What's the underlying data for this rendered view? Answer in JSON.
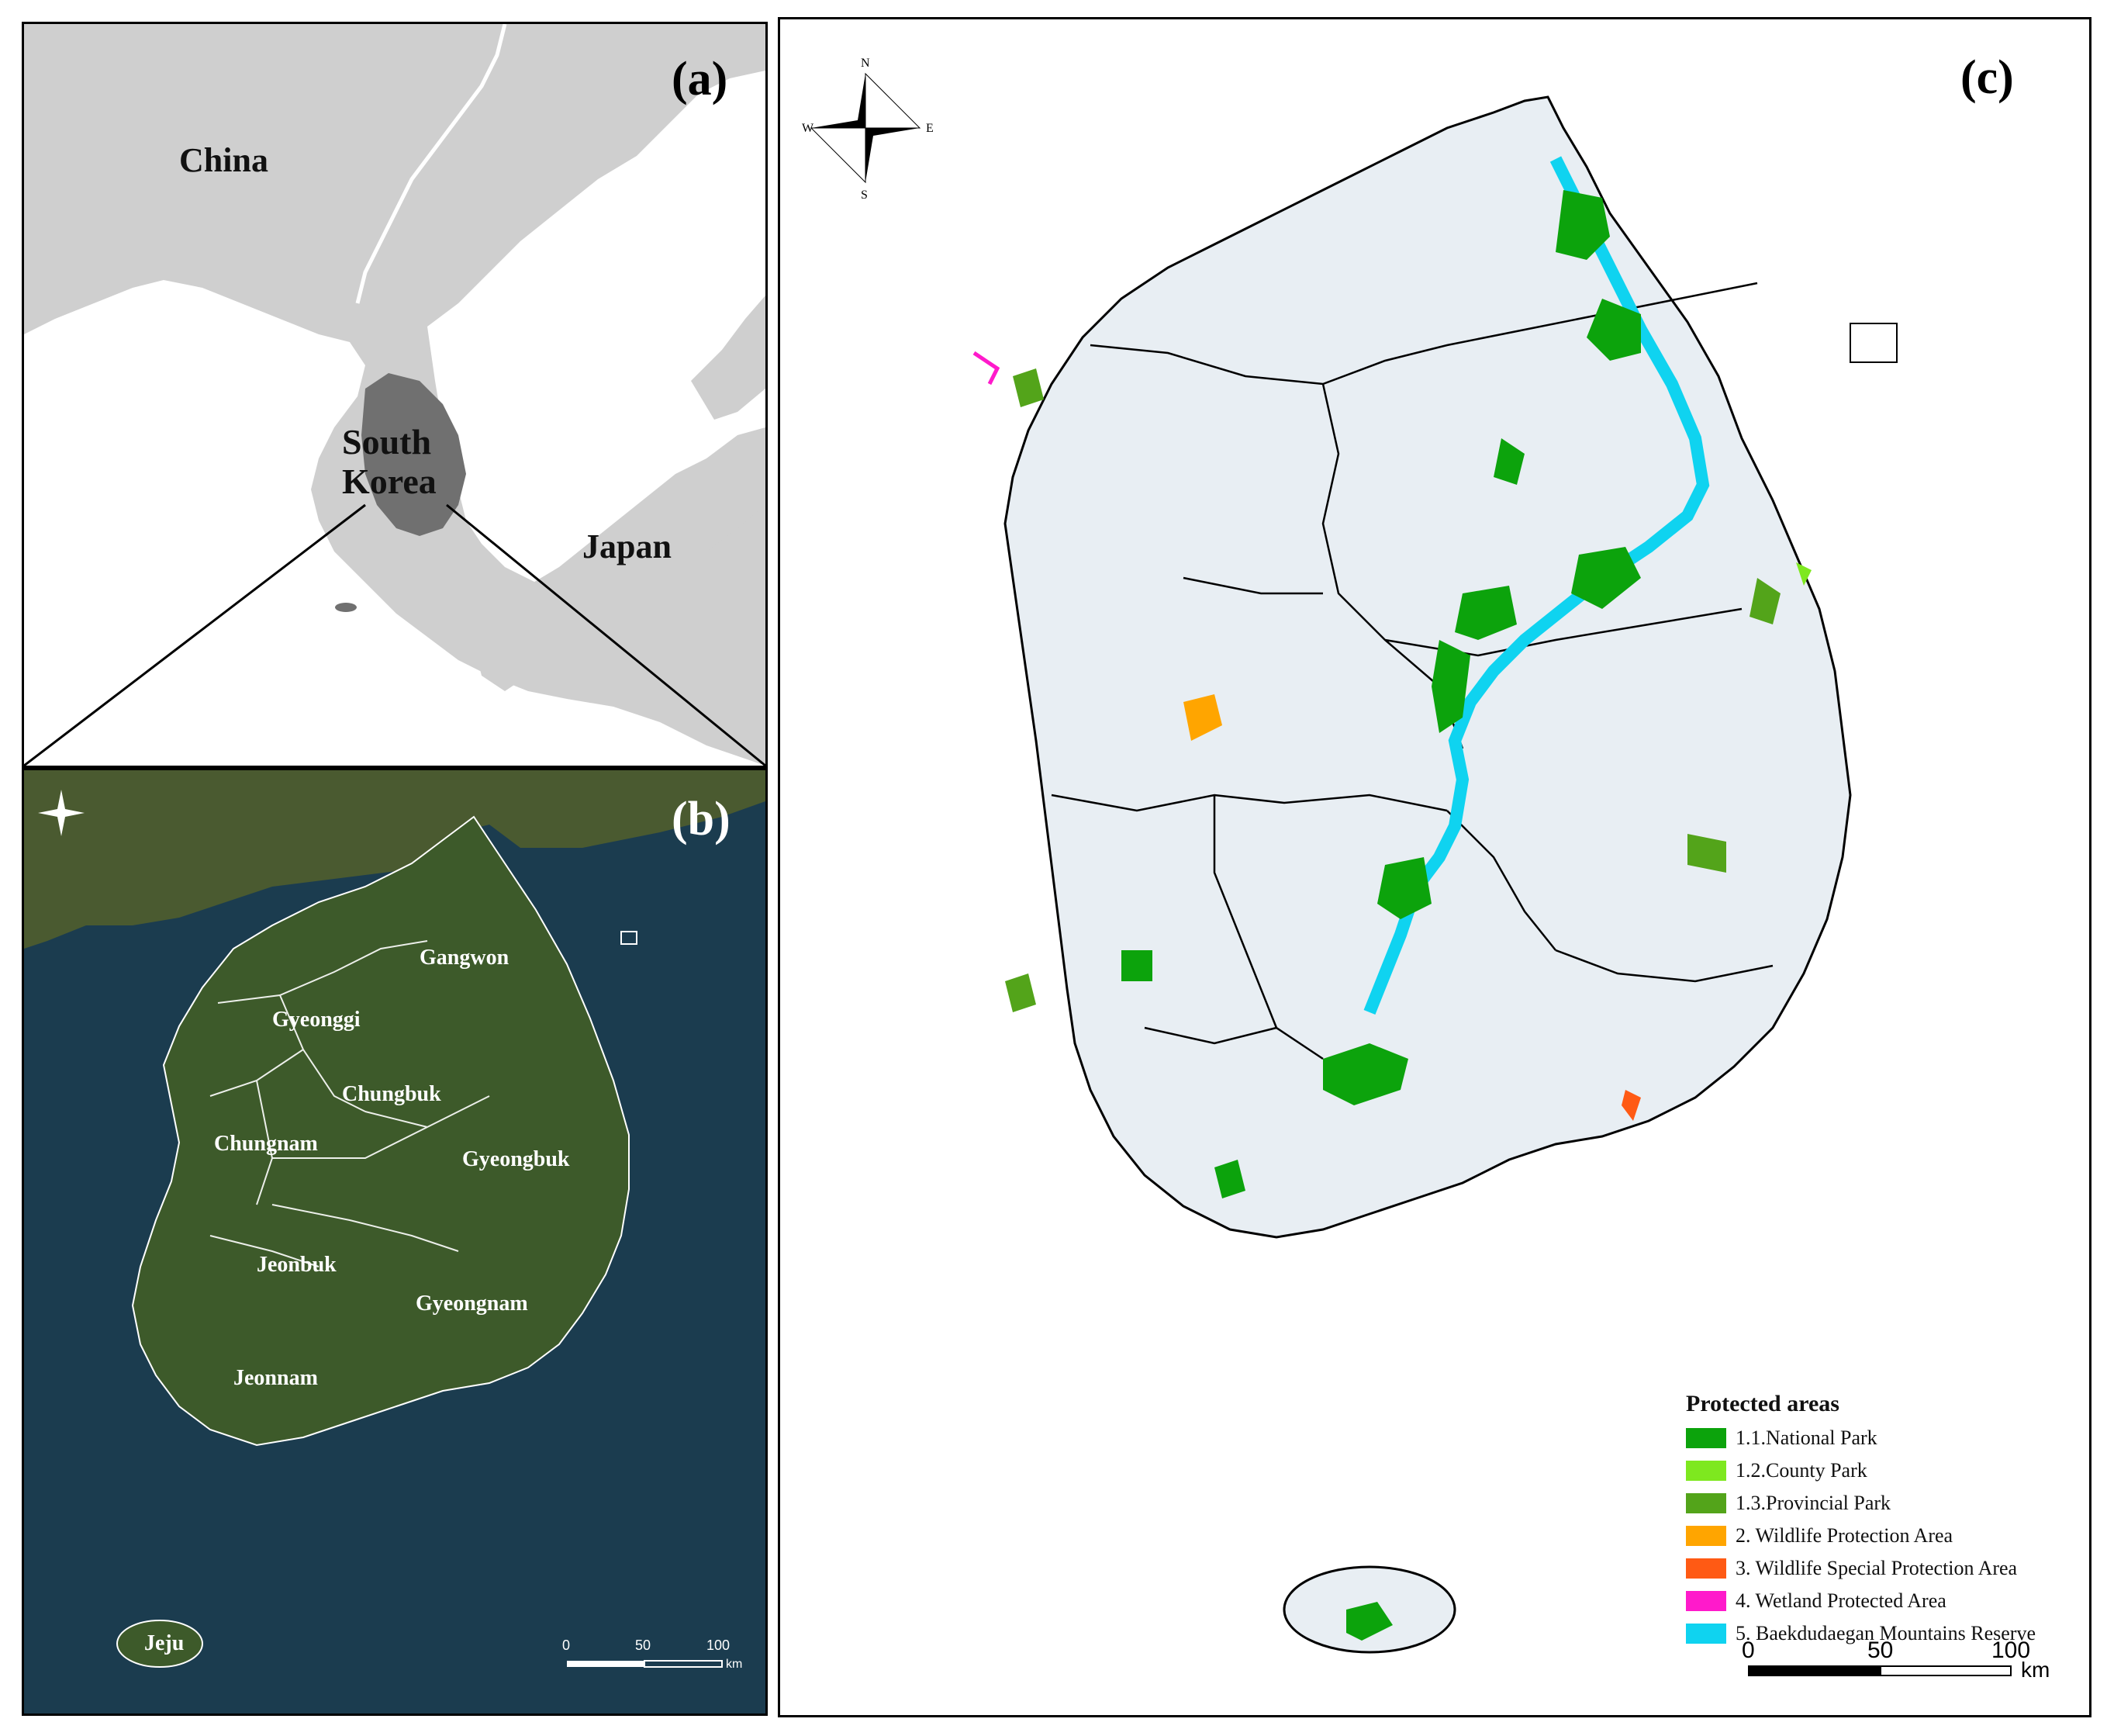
{
  "panel_a": {
    "label": "(a)",
    "country_labels": {
      "china": "China",
      "south_korea_line1": "South",
      "south_korea_line2": "Korea",
      "japan": "Japan"
    }
  },
  "panel_b": {
    "label": "(b)",
    "regions": {
      "gangwon": "Gangwon",
      "gyeonggi": "Gyeonggi",
      "chungbuk": "Chungbuk",
      "chungnam": "Chungnam",
      "gyeongbuk": "Gyeongbuk",
      "jeonbuk": "Jeonbuk",
      "gyeongnam": "Gyeongnam",
      "jeonnam": "Jeonnam",
      "jeju": "Jeju"
    },
    "scale": {
      "tick0": "0",
      "tick1": "50",
      "tick2": "100",
      "unit": "km"
    }
  },
  "panel_c": {
    "label": "(c)",
    "compass": {
      "n": "N",
      "s": "S",
      "e": "E",
      "w": "W"
    },
    "legend": {
      "title": "Protected areas",
      "items": [
        {
          "label": "1.1.National Park",
          "color": "#0ca30c"
        },
        {
          "label": "1.2.County Park",
          "color": "#7ee81f"
        },
        {
          "label": "1.3.Provincial Park",
          "color": "#53a41a"
        },
        {
          "label": "2.    Wildlife Protection Area",
          "color": "#ffa500"
        },
        {
          "label": "3.    Wildlife Special Protection Area",
          "color": "#ff5a14"
        },
        {
          "label": "4.    Wetland Protected Area",
          "color": "#ff1acb"
        },
        {
          "label": "5.    Baekdudaegan Mountains Reserve",
          "color": "#0fd3f0"
        }
      ]
    },
    "scale": {
      "tick0": "0",
      "tick1": "50",
      "tick2": "100",
      "unit": "km"
    }
  },
  "colors": {
    "land_light": "#e8eef3",
    "land_gray": "#cfcfcf",
    "sea_white": "#ffffff",
    "korea_dark": "#707070",
    "satellite_sea": "#1b3c4f",
    "satellite_land": "#3f5a2c"
  }
}
